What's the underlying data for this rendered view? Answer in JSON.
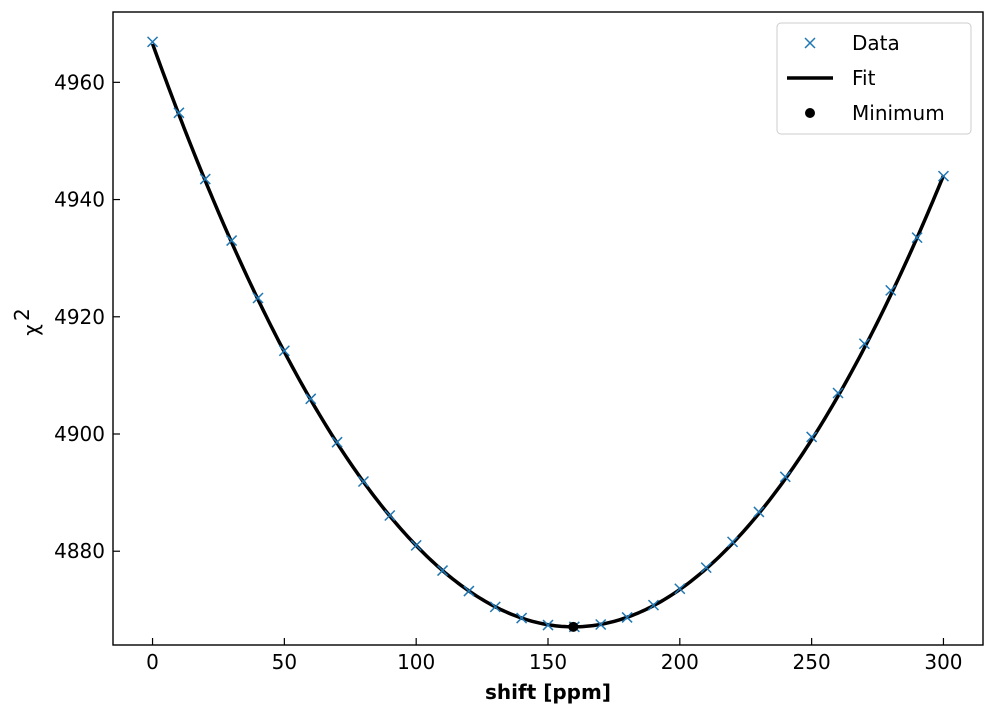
{
  "chart_data": {
    "type": "line",
    "xlabel": "shift [ppm]",
    "ylabel": "χ",
    "ylabel_superscript": "2",
    "xlim": [
      -15,
      315
    ],
    "ylim": [
      4864,
      4972
    ],
    "xticks": [
      0,
      50,
      100,
      150,
      200,
      250,
      300
    ],
    "yticks": [
      4880,
      4900,
      4920,
      4940,
      4960
    ],
    "legend": {
      "position": "top-right",
      "entries": [
        {
          "label": "Data",
          "marker": "x",
          "color": "#1f77b4"
        },
        {
          "label": "Fit",
          "marker": "line",
          "color": "#000000"
        },
        {
          "label": "Minimum",
          "marker": "dot",
          "color": "#000000"
        }
      ]
    },
    "series": [
      {
        "name": "Data",
        "marker": "x",
        "color": "#1f77b4",
        "x": [
          0,
          10,
          20,
          30,
          40,
          50,
          60,
          70,
          80,
          90,
          100,
          110,
          120,
          130,
          140,
          150,
          160,
          170,
          180,
          190,
          200,
          210,
          220,
          230,
          240,
          250,
          260,
          270,
          280,
          290,
          300
        ],
        "y": [
          4966.9,
          4954.8,
          4943.5,
          4933.0,
          4923.2,
          4914.2,
          4906.0,
          4898.6,
          4891.9,
          4886.1,
          4881.0,
          4876.7,
          4873.2,
          4870.5,
          4868.6,
          4867.4,
          4867.1,
          4867.5,
          4868.7,
          4870.8,
          4873.6,
          4877.2,
          4881.6,
          4886.7,
          4892.7,
          4899.5,
          4907.0,
          4915.4,
          4924.5,
          4933.5,
          4944.0
        ]
      },
      {
        "name": "Fit",
        "type": "curve",
        "color": "#000000",
        "form": "quadratic",
        "vertex_x": 159.6,
        "vertex_y": 4867.1,
        "a": 0.003905
      },
      {
        "name": "Minimum",
        "marker": "dot",
        "color": "#000000",
        "x": [
          159.6
        ],
        "y": [
          4867.1
        ]
      }
    ]
  }
}
